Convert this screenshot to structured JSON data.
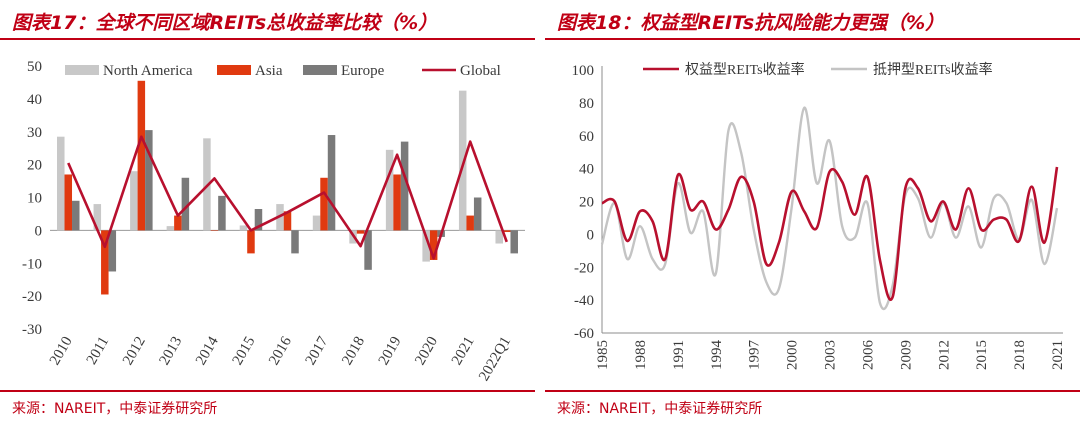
{
  "charts": [
    {
      "title": "图表17：全球不同区域REITs总收益率比较（%）",
      "source": "来源：NAREIT，中泰证券研究所"
    },
    {
      "title": "图表18：权益型REITs抗风险能力更强（%）",
      "source": "来源：NAREIT，中泰证券研究所"
    }
  ],
  "chart_data": [
    {
      "type": "bar",
      "title": "图表17：全球不同区域REITs总收益率比较（%）",
      "xlabel": "",
      "ylabel": "",
      "ylim": [
        -30,
        50
      ],
      "yticks": [
        50,
        40,
        30,
        20,
        10,
        0,
        -10,
        -20,
        -30
      ],
      "legend_position": "top",
      "categories": [
        "2010",
        "2011",
        "2012",
        "2013",
        "2014",
        "2015",
        "2016",
        "2017",
        "2018",
        "2019",
        "2020",
        "2021",
        "2022Q1"
      ],
      "series": [
        {
          "name": "North America",
          "type": "bar",
          "color": "#c8c8c8",
          "values": [
            28.5,
            8.0,
            18.0,
            1.3,
            28.0,
            1.5,
            8.0,
            4.5,
            -4.0,
            24.5,
            -9.5,
            42.5,
            -4.0
          ]
        },
        {
          "name": "Asia",
          "type": "bar",
          "color": "#e03a10",
          "values": [
            17.0,
            -19.5,
            45.5,
            4.5,
            0.0,
            -7.0,
            5.8,
            16.0,
            -1.0,
            17.0,
            -9.0,
            4.5,
            -0.5
          ]
        },
        {
          "name": "Europe",
          "type": "bar",
          "color": "#7a7a7a",
          "values": [
            9.0,
            -12.5,
            30.5,
            16.0,
            10.5,
            6.5,
            -7.0,
            29.0,
            -12.0,
            27.0,
            -2.0,
            10.0,
            -7.0
          ]
        },
        {
          "name": "Global",
          "type": "line",
          "color": "#b8102e",
          "values": [
            20.5,
            -5.0,
            28.5,
            4.5,
            15.8,
            0.0,
            5.5,
            11.5,
            -4.8,
            23.0,
            -8.5,
            27.0,
            -3.5
          ]
        }
      ]
    },
    {
      "type": "line",
      "title": "图表18：权益型REITs抗风险能力更强（%）",
      "xlabel": "",
      "ylabel": "",
      "ylim": [
        -60,
        100
      ],
      "xlim": [
        1985,
        2021
      ],
      "yticks": [
        100,
        80,
        60,
        40,
        20,
        0,
        -20,
        -40,
        -60
      ],
      "xticks": [
        1985,
        1988,
        1991,
        1994,
        1997,
        2000,
        2003,
        2006,
        2009,
        2012,
        2015,
        2018,
        2021
      ],
      "legend_position": "top",
      "series": [
        {
          "name": "权益型REITs收益率",
          "color": "#b8102e",
          "x": [
            1985,
            1986,
            1987,
            1988,
            1989,
            1990,
            1991,
            1992,
            1993,
            1994,
            1995,
            1996,
            1997,
            1998,
            1999,
            2000,
            2001,
            2002,
            2003,
            2004,
            2005,
            2006,
            2007,
            2008,
            2009,
            2010,
            2011,
            2012,
            2013,
            2014,
            2015,
            2016,
            2017,
            2018,
            2019,
            2020,
            2021
          ],
          "y": [
            19,
            20,
            -4,
            14,
            8,
            -15,
            36,
            15,
            20,
            3,
            15,
            35,
            20,
            -18,
            -5,
            26,
            14,
            4,
            38,
            32,
            12,
            35,
            -16,
            -38,
            28,
            28,
            8,
            20,
            3,
            28,
            3,
            9,
            9,
            -4,
            29,
            -5,
            41
          ]
        },
        {
          "name": "抵押型REITs收益率",
          "color": "#c4c4c4",
          "x": [
            1985,
            1986,
            1987,
            1988,
            1989,
            1990,
            1991,
            1992,
            1993,
            1994,
            1995,
            1996,
            1997,
            1998,
            1999,
            2000,
            2001,
            2002,
            2003,
            2004,
            2005,
            2006,
            2007,
            2008,
            2009,
            2010,
            2011,
            2012,
            2013,
            2014,
            2015,
            2016,
            2017,
            2018,
            2019,
            2020,
            2021
          ],
          "y": [
            -6,
            19,
            -15,
            5,
            -15,
            -18,
            31,
            1,
            14,
            -24,
            63,
            50,
            3,
            -29,
            -33,
            16,
            77,
            31,
            57,
            5,
            -2,
            19,
            -42,
            -31,
            24,
            22,
            -2,
            19,
            -2,
            17,
            -8,
            22,
            19,
            -3,
            21,
            -18,
            16
          ]
        }
      ]
    }
  ]
}
